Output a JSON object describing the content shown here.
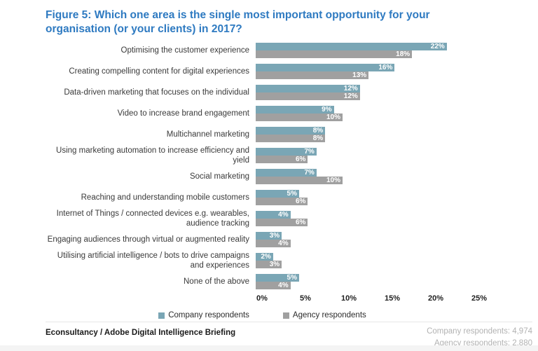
{
  "title": "Figure 5: Which one area is the single most important opportunity for your organisation (or your clients) in 2017?",
  "chart_data": {
    "type": "bar",
    "orientation": "horizontal",
    "grouped": true,
    "title": "Figure 5: Which one area is the single most important opportunity for your organisation (or your clients) in 2017?",
    "categories": [
      "Optimising the customer experience",
      "Creating compelling content for digital experiences",
      "Data-driven marketing that focuses on the individual",
      "Video to increase brand engagement",
      "Multichannel marketing",
      "Using marketing automation to increase efficiency and yield",
      "Social marketing",
      "Reaching and understanding mobile customers",
      "Internet of Things / connected devices e.g. wearables, audience tracking",
      "Engaging audiences through virtual or augmented reality",
      "Utilising artificial intelligence / bots to drive campaigns and experiences",
      "None of the above"
    ],
    "series": [
      {
        "name": "Company respondents",
        "key": "company",
        "color": "#7aa6b5",
        "values": [
          22,
          16,
          12,
          9,
          8,
          7,
          7,
          5,
          4,
          3,
          2,
          5
        ]
      },
      {
        "name": "Agency respondents",
        "key": "agency",
        "color": "#a0a0a0",
        "values": [
          18,
          13,
          12,
          10,
          8,
          6,
          10,
          6,
          6,
          4,
          3,
          4
        ]
      }
    ],
    "value_suffix": "%",
    "x_ticks": [
      "0%",
      "5%",
      "10%",
      "15%",
      "20%",
      "25%"
    ],
    "xlim": [
      0,
      25
    ],
    "grid": false,
    "legend_position": "bottom"
  },
  "footer": {
    "source": "Econsultancy / Adobe Digital Intelligence Briefing",
    "company_count": "Company respondents: 4,974",
    "agency_count": "Agency respondents: 2,880"
  }
}
